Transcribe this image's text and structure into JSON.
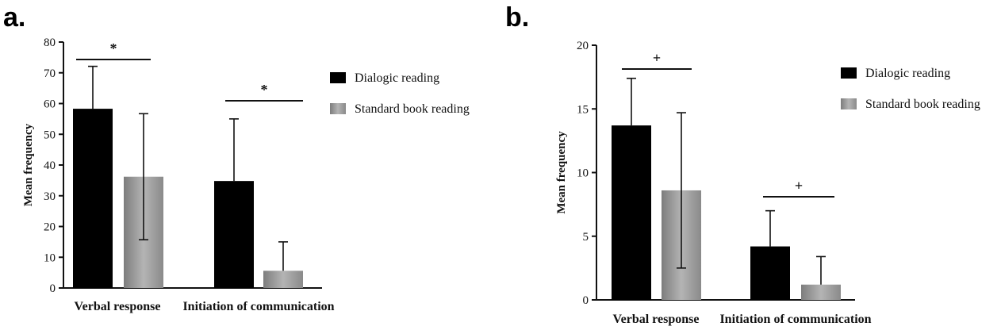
{
  "chart_data": [
    {
      "type": "bar",
      "panel_label": "a.",
      "ylabel": "Mean frequency",
      "ylim": [
        0,
        80
      ],
      "yticks": [
        0,
        10,
        20,
        30,
        40,
        50,
        60,
        70,
        80
      ],
      "categories": [
        "Verbal response",
        "Initiation of communication"
      ],
      "series": [
        {
          "name": "Dialogic reading",
          "color": "#000000",
          "values": [
            58.3,
            34.8
          ],
          "error_bars": [
            {
              "direction": "up",
              "value": 13.8
            },
            {
              "direction": "up",
              "value": 20.2
            }
          ]
        },
        {
          "name": "Standard book reading",
          "color": "#9a9a9a",
          "values": [
            36.2,
            5.6
          ],
          "error_bars": [
            {
              "direction": "both",
              "value": 20.5
            },
            {
              "direction": "up",
              "value": 9.4
            }
          ]
        }
      ],
      "significance": [
        {
          "category_index": 0,
          "symbol": "*"
        },
        {
          "category_index": 1,
          "symbol": "*"
        }
      ],
      "legend_position": "right"
    },
    {
      "type": "bar",
      "panel_label": "b.",
      "ylabel": "Mean frequency",
      "ylim": [
        0,
        20
      ],
      "yticks": [
        0,
        5,
        10,
        15,
        20
      ],
      "categories": [
        "Verbal response",
        "Initiation of communication"
      ],
      "series": [
        {
          "name": "Dialogic reading",
          "color": "#000000",
          "values": [
            13.7,
            4.2
          ],
          "error_bars": [
            {
              "direction": "up",
              "value": 3.7
            },
            {
              "direction": "up",
              "value": 2.8
            }
          ]
        },
        {
          "name": "Standard book reading",
          "color": "#9a9a9a",
          "values": [
            8.6,
            1.2
          ],
          "error_bars": [
            {
              "direction": "both",
              "value": 6.1
            },
            {
              "direction": "up",
              "value": 2.2
            }
          ]
        }
      ],
      "significance": [
        {
          "category_index": 0,
          "symbol": "+"
        },
        {
          "category_index": 1,
          "symbol": "+"
        }
      ],
      "legend_position": "right"
    }
  ]
}
